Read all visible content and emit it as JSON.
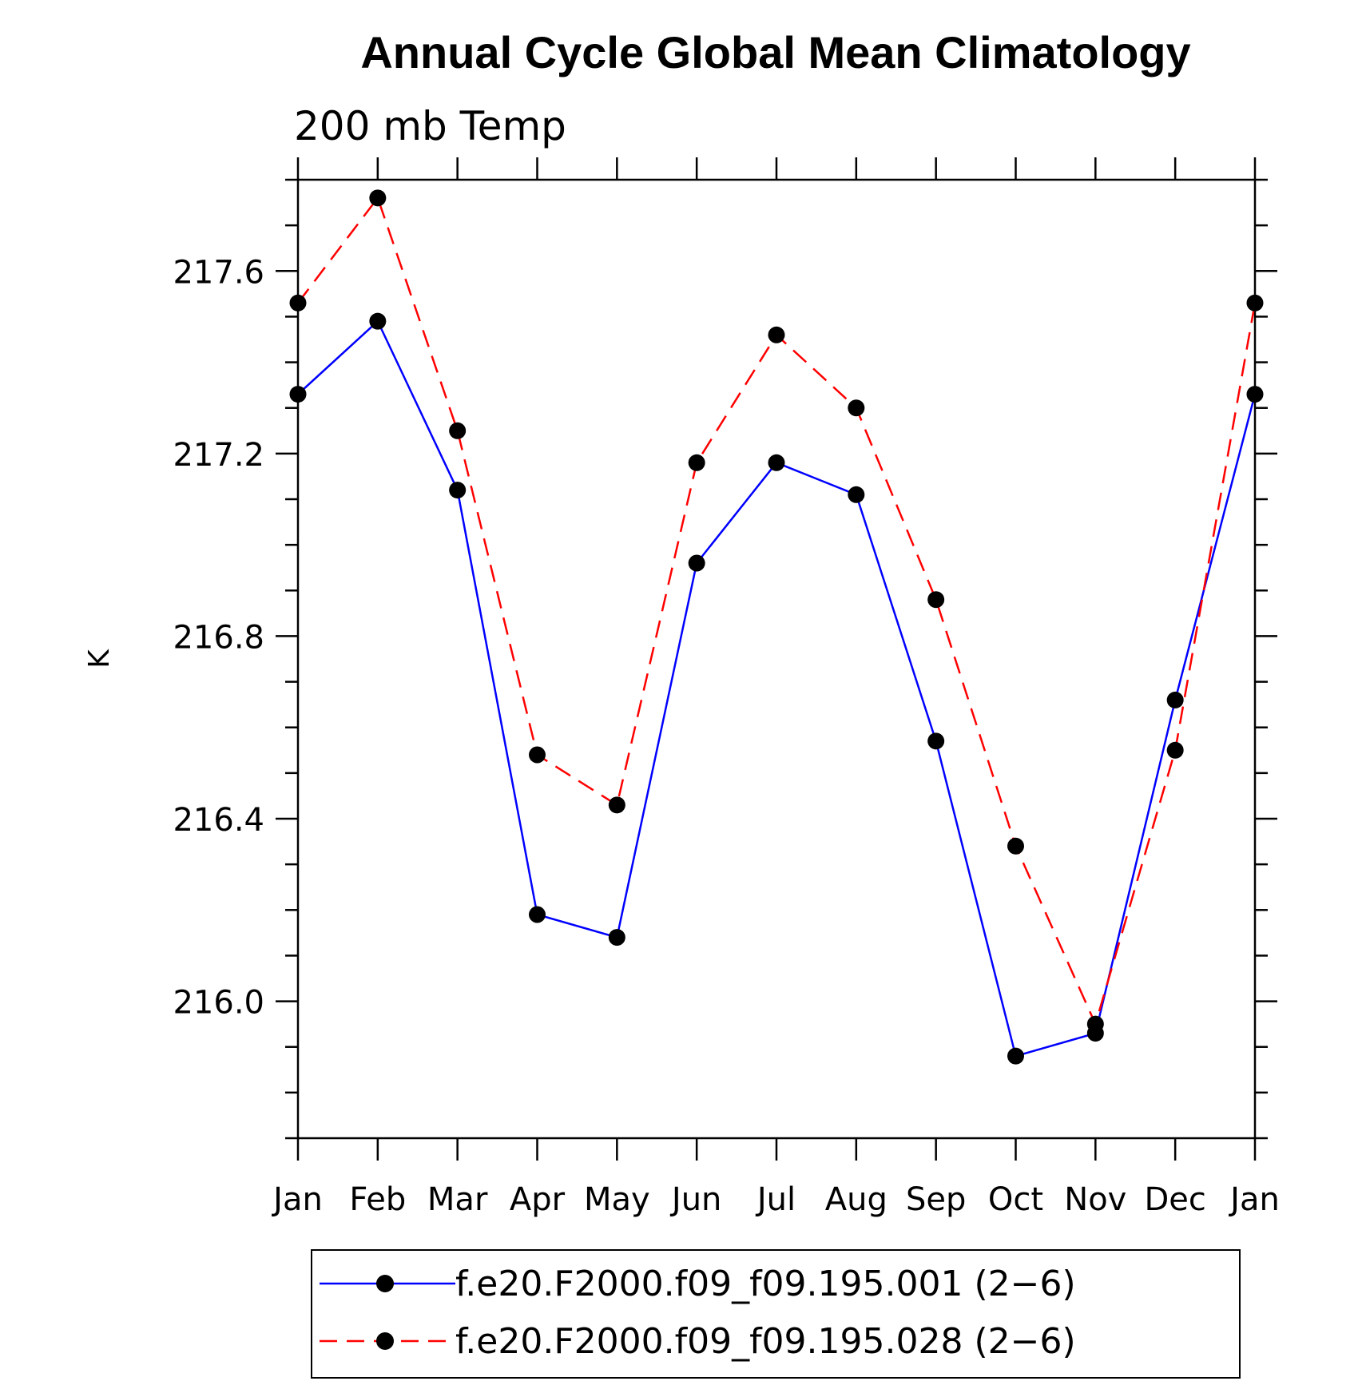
{
  "chart_data": {
    "type": "line",
    "title": "Annual Cycle Global Mean Climatology",
    "subtitle": "200 mb Temp",
    "xlabel": "",
    "ylabel": "K",
    "categories": [
      "Jan",
      "Feb",
      "Mar",
      "Apr",
      "May",
      "Jun",
      "Jul",
      "Aug",
      "Sep",
      "Oct",
      "Nov",
      "Dec",
      "Jan"
    ],
    "ylim": [
      215.7,
      217.8
    ],
    "yticks": [
      "216.0",
      "216.4",
      "216.8",
      "217.2",
      "217.6"
    ],
    "legend_position": "bottom",
    "series": [
      {
        "name": "f.e20.F2000.f09_f09.195.001 (2−6)",
        "color": "#0000ff",
        "style": "solid",
        "marker": "filled-circle",
        "values": [
          217.33,
          217.49,
          217.12,
          216.19,
          216.14,
          216.96,
          217.18,
          217.11,
          216.57,
          215.88,
          215.93,
          216.66,
          217.33
        ]
      },
      {
        "name": "f.e20.F2000.f09_f09.195.028 (2−6)",
        "color": "#ff0000",
        "style": "dashed",
        "marker": "filled-circle",
        "values": [
          217.53,
          217.76,
          217.25,
          216.54,
          216.43,
          217.18,
          217.46,
          217.3,
          216.88,
          216.34,
          215.95,
          216.55,
          217.53
        ]
      }
    ]
  }
}
